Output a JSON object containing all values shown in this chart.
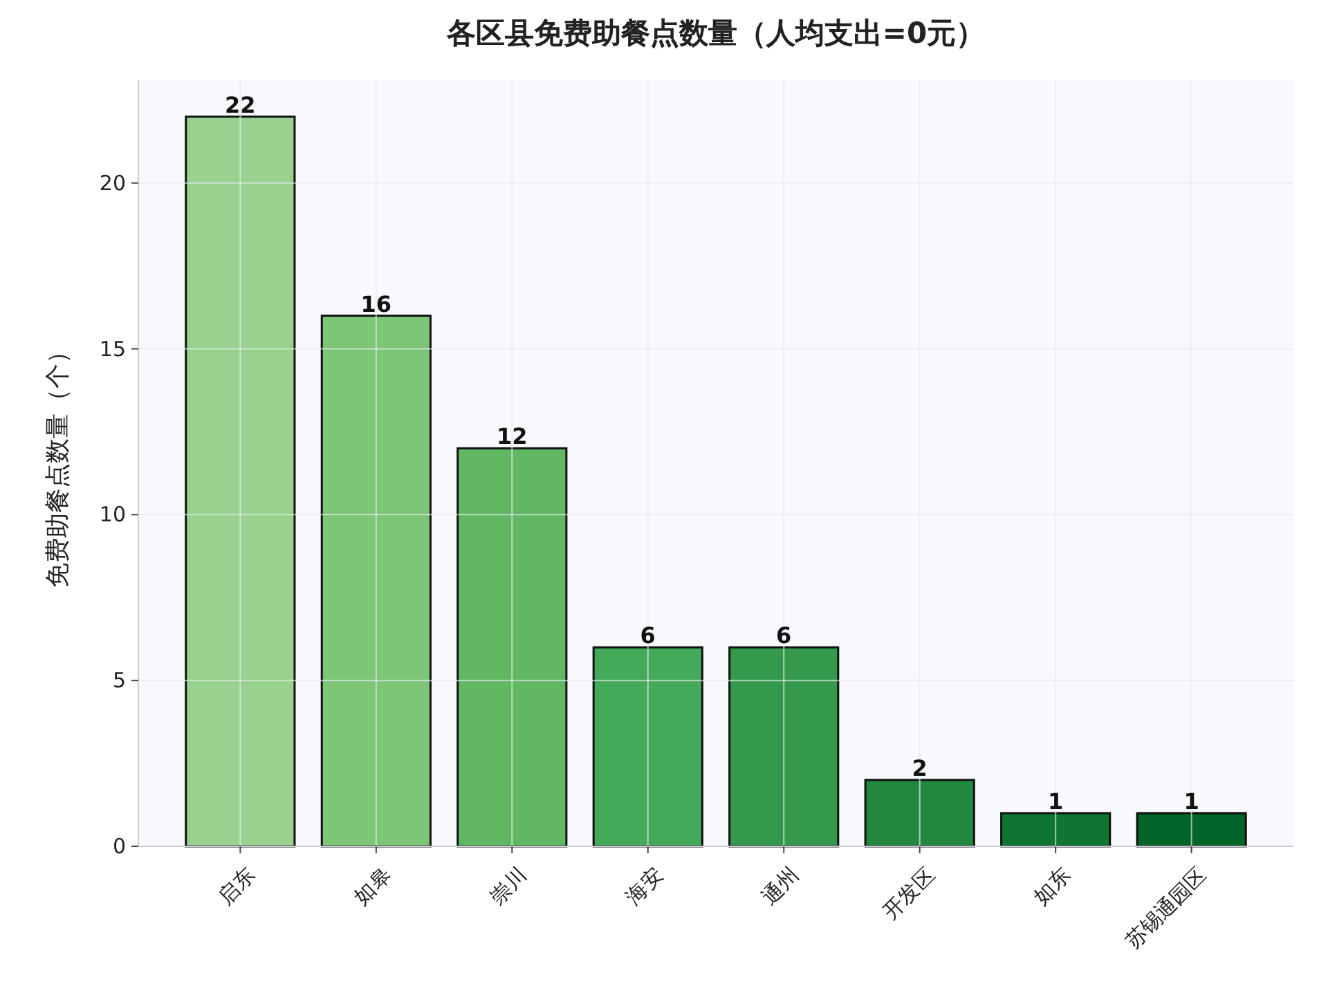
{
  "chart_data": {
    "type": "bar",
    "title": "各区县免费助餐点数量（人均支出=0元）",
    "ylabel": "免费助餐点数量（个）",
    "categories": [
      "启东",
      "如皋",
      "崇川",
      "海安",
      "通州",
      "开发区",
      "如东",
      "苏锡通园区"
    ],
    "values": [
      22,
      16,
      12,
      6,
      6,
      2,
      1,
      1
    ],
    "colors": [
      "#98d28e",
      "#7dc675",
      "#62b862",
      "#44aa5a",
      "#35994c",
      "#23883f",
      "#0e7632",
      "#016527"
    ],
    "ylim": [
      0,
      23.1
    ],
    "yticks": [
      0,
      5,
      10,
      15,
      20
    ],
    "grid": true,
    "data_labels": true
  }
}
